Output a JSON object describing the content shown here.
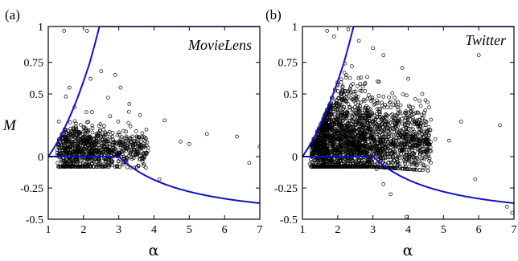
{
  "chart_data": [
    {
      "type": "scatter",
      "panel_label": "(a)",
      "title": "MovieLens",
      "xlabel": "α",
      "ylabel": "M",
      "xlim": [
        1,
        7
      ],
      "ylim": [
        -0.5,
        1
      ],
      "y_scale": "piecewise",
      "x_ticks": [
        1,
        2,
        3,
        4,
        5,
        6,
        7
      ],
      "y_ticks": [
        1,
        0.75,
        0.5,
        0,
        -0.25,
        -0.5
      ],
      "y_tick_labels": [
        "1",
        "0.75",
        "0.5",
        "0",
        "-0.25",
        "-0.5"
      ],
      "grid": false,
      "legend": "none",
      "bounds": {
        "upper_color": "#1010cc",
        "lower_color": "#1010cc"
      },
      "cluster": {
        "count": 900,
        "x_center": 2.3,
        "y_center": 0.05
      },
      "outliers": [
        [
          1.45,
          0.97
        ],
        [
          2.1,
          0.97
        ],
        [
          1.6,
          0.55
        ],
        [
          1.5,
          0.48
        ],
        [
          2.5,
          0.68
        ],
        [
          2.2,
          0.62
        ],
        [
          2.9,
          0.65
        ],
        [
          3.05,
          0.55
        ],
        [
          3.3,
          0.42
        ],
        [
          3.6,
          0.33
        ],
        [
          4.3,
          0.29
        ],
        [
          5.5,
          0.18
        ],
        [
          6.35,
          0.16
        ],
        [
          7.0,
          0.08
        ],
        [
          4.15,
          -0.18
        ],
        [
          6.7,
          -0.05
        ],
        [
          4.75,
          0.12
        ],
        [
          5.0,
          0.1
        ],
        [
          1.3,
          0.28
        ],
        [
          2.7,
          0.47
        ]
      ]
    },
    {
      "type": "scatter",
      "panel_label": "(b)",
      "title": "Twitter",
      "xlabel": "α",
      "xlim": [
        1,
        7
      ],
      "ylim": [
        -0.5,
        1
      ],
      "y_scale": "piecewise",
      "x_ticks": [
        1,
        2,
        3,
        4,
        5,
        6,
        7
      ],
      "y_ticks": [
        1,
        0.75,
        0.5,
        0,
        -0.25,
        -0.5
      ],
      "y_tick_labels": [
        "1",
        "0.75",
        "0.5",
        "0",
        "-0.25",
        "-0.5"
      ],
      "grid": false,
      "legend": "none",
      "bounds": {
        "upper_color": "#1010cc",
        "lower_color": "#1010cc"
      },
      "cluster": {
        "count": 2500,
        "x_center": 2.4,
        "y_center": 0.12
      },
      "outliers": [
        [
          1.7,
          0.97
        ],
        [
          1.9,
          0.93
        ],
        [
          2.3,
          0.98
        ],
        [
          2.6,
          0.9
        ],
        [
          3.0,
          0.85
        ],
        [
          3.3,
          0.8
        ],
        [
          4.0,
          0.62
        ],
        [
          6.0,
          0.8
        ],
        [
          4.4,
          0.5
        ],
        [
          5.5,
          0.28
        ],
        [
          3.95,
          -0.48
        ],
        [
          3.5,
          -0.3
        ],
        [
          3.3,
          -0.22
        ],
        [
          6.8,
          -0.4
        ],
        [
          6.95,
          -0.45
        ],
        [
          6.6,
          0.25
        ],
        [
          5.9,
          -0.18
        ],
        [
          3.1,
          -0.1
        ]
      ]
    }
  ]
}
